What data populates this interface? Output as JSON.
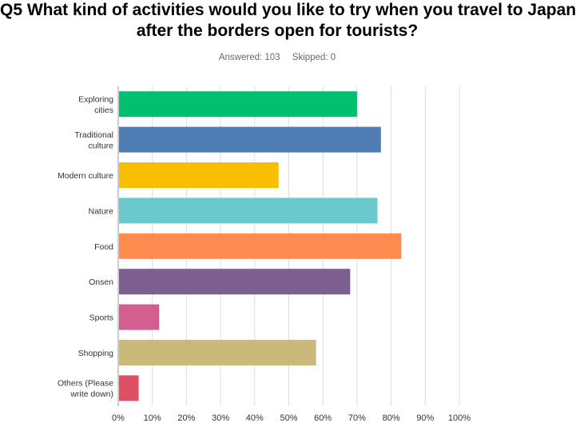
{
  "question": {
    "title_line1": "Q5 What kind of activities would you like to try when you travel to Japan",
    "title_line2": "after the borders open for tourists?"
  },
  "stats": {
    "answered": "Answered: 103",
    "skipped": "Skipped: 0"
  },
  "chart_data": {
    "type": "bar",
    "orientation": "horizontal",
    "categories": [
      "Exploring cities",
      "Traditional culture",
      "Modern culture",
      "Nature",
      "Food",
      "Onsen",
      "Sports",
      "Shopping",
      "Others (Please write down)"
    ],
    "category_label_lines": [
      [
        "Exploring",
        "cities"
      ],
      [
        "Traditional",
        "culture"
      ],
      [
        "Modern culture"
      ],
      [
        "Nature"
      ],
      [
        "Food"
      ],
      [
        "Onsen"
      ],
      [
        "Sports"
      ],
      [
        "Shopping"
      ],
      [
        "Others (Please",
        "write down)"
      ]
    ],
    "values": [
      70,
      77,
      47,
      76,
      83,
      68,
      12,
      58,
      6
    ],
    "unit": "%",
    "xlim": [
      0,
      100
    ],
    "ticks": [
      0,
      10,
      20,
      30,
      40,
      50,
      60,
      70,
      80,
      90,
      100
    ],
    "tick_labels": [
      "0%",
      "10%",
      "20%",
      "30%",
      "40%",
      "50%",
      "60%",
      "70%",
      "80%",
      "90%",
      "100%"
    ],
    "grid": true,
    "colors": [
      "#00bf6f",
      "#507cb6",
      "#f9be00",
      "#6bc8cd",
      "#ff8b4f",
      "#7d5e90",
      "#d25f90",
      "#c9b97b",
      "#e05065"
    ],
    "xlabel": "",
    "ylabel": ""
  }
}
